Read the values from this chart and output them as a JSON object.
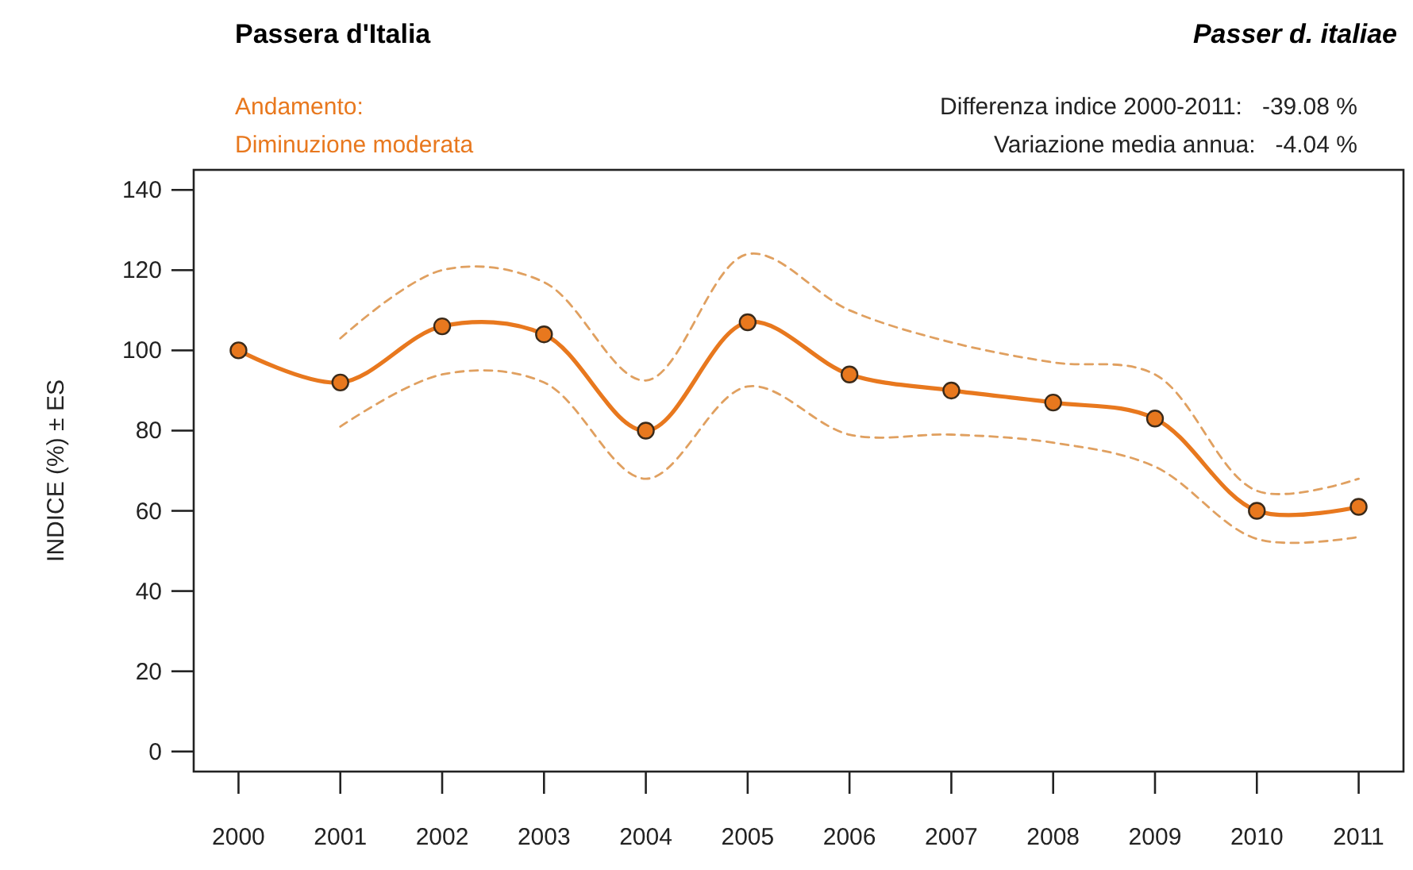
{
  "chart_data": {
    "type": "line",
    "title": "Passera d'Italia",
    "subtitle": "Passer d. italiae",
    "ylabel": "INDICE (%) ± ES",
    "annotations": [
      "Andamento:",
      "Diminuzione moderata",
      "Differenza indice 2000-2011:   -39.08 %",
      "Variazione media annua:   -4.04 %"
    ],
    "x": [
      2000,
      2001,
      2002,
      2003,
      2004,
      2005,
      2006,
      2007,
      2008,
      2009,
      2010,
      2011
    ],
    "series": [
      {
        "color": "#e8781e",
        "values": [
          100,
          92,
          106,
          104,
          80,
          107,
          94,
          90,
          87,
          83,
          60,
          61
        ]
      },
      {
        "color": "#e0a060",
        "line_style": "dashed",
        "marker": "none",
        "x": [
          2001,
          2002,
          2003,
          2004,
          2005,
          2006,
          2007,
          2008,
          2009,
          2010,
          2011
        ],
        "values": [
          103,
          120,
          117,
          92.5,
          124,
          110,
          102,
          97,
          94,
          65,
          68
        ]
      },
      {
        "color": "#e0a060",
        "line_style": "dashed",
        "marker": "none",
        "x": [
          2001,
          2002,
          2003,
          2004,
          2005,
          2006,
          2007,
          2008,
          2009,
          2010,
          2011
        ],
        "values": [
          81,
          94,
          92,
          68,
          91,
          79,
          79,
          77,
          71,
          53,
          53.5
        ]
      }
    ],
    "xlim": [
      1999.56,
      2011.44
    ],
    "xticks": [
      2000,
      2001,
      2002,
      2003,
      2004,
      2005,
      2006,
      2007,
      2008,
      2009,
      2010,
      2011
    ],
    "ylim": [
      -5,
      145
    ],
    "yticks": [
      0,
      20,
      40,
      60,
      80,
      100,
      120,
      140
    ],
    "marker": "circle",
    "line_style": "solid"
  }
}
